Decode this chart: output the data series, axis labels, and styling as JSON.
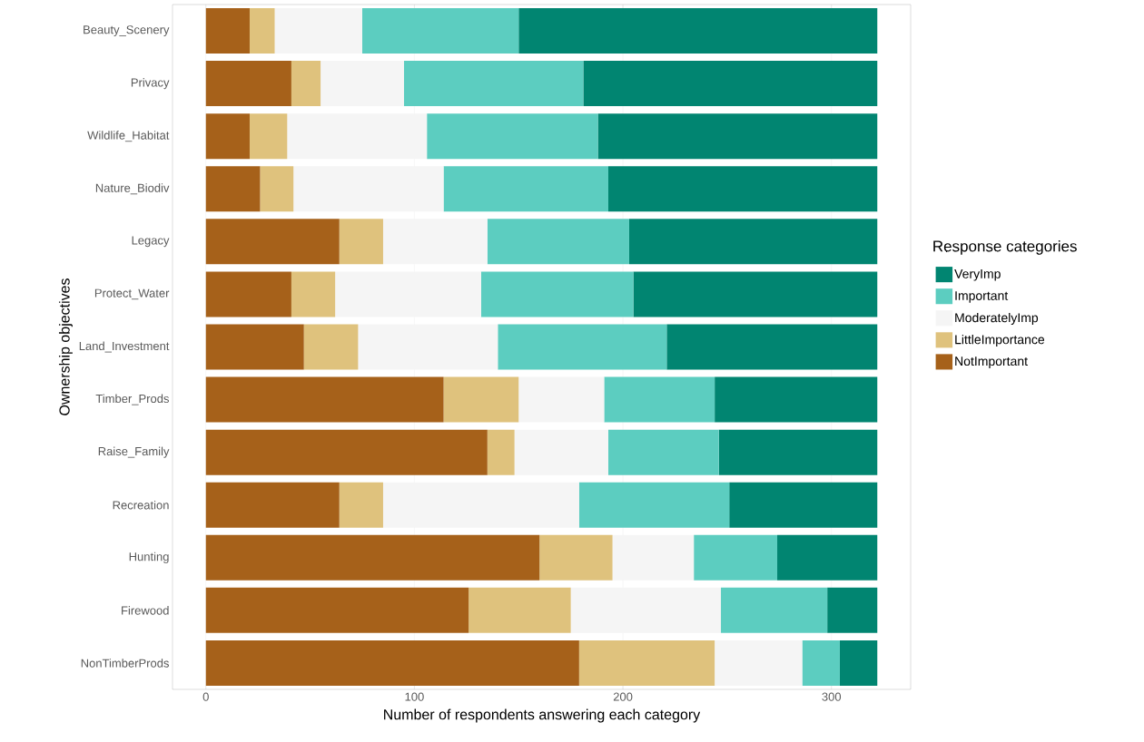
{
  "chart_data": {
    "type": "bar",
    "orientation": "horizontal",
    "stacked": true,
    "xlabel": "Number of respondents answering each category",
    "ylabel": "Ownership objectives",
    "legend_title": "Response categories",
    "categories": [
      "Beauty_Scenery",
      "Privacy",
      "Wildlife_Habitat",
      "Nature_Biodiv",
      "Legacy",
      "Protect_Water",
      "Land_Investment",
      "Timber_Prods",
      "Raise_Family",
      "Recreation",
      "Hunting",
      "Firewood",
      "NonTimberProds"
    ],
    "series": [
      {
        "name": "NotImportant",
        "color": "#a6611a",
        "values": [
          21,
          41,
          21,
          26,
          64,
          41,
          47,
          114,
          135,
          64,
          160,
          126,
          179
        ]
      },
      {
        "name": "LittleImportance",
        "color": "#dfc27d",
        "values": [
          12,
          14,
          18,
          16,
          21,
          21,
          26,
          36,
          13,
          21,
          35,
          49,
          65
        ]
      },
      {
        "name": "ModeratelyImp",
        "color": "#f5f5f5",
        "values": [
          42,
          40,
          67,
          72,
          50,
          70,
          67,
          41,
          45,
          94,
          39,
          72,
          42
        ]
      },
      {
        "name": "Important",
        "color": "#5ccdc0",
        "values": [
          75,
          86,
          82,
          79,
          68,
          73,
          81,
          53,
          53,
          72,
          40,
          51,
          18
        ]
      },
      {
        "name": "VeryImp",
        "color": "#018571",
        "values": [
          172,
          141,
          134,
          129,
          119,
          117,
          101,
          78,
          76,
          71,
          48,
          24,
          18
        ]
      }
    ],
    "xlim": [
      -16,
      338
    ],
    "xticks": [
      0,
      100,
      200,
      300
    ],
    "grid": "x",
    "legend": "right"
  }
}
